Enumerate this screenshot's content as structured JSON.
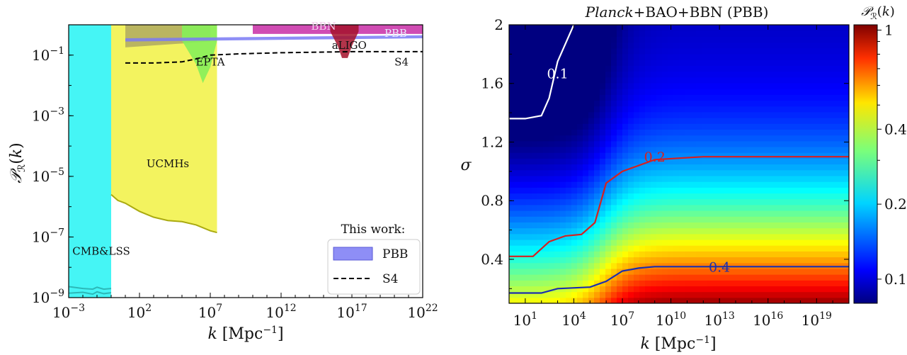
{
  "chart_data": [
    {
      "type": "area",
      "xlabel": "k [Mpc⁻¹]",
      "ylabel": "𝒫_ℛ(k)",
      "xscale": "log",
      "yscale": "log",
      "xlim": [
        0.001,
        1e+22
      ],
      "ylim": [
        1e-09,
        1
      ],
      "grid": false,
      "x_ticks": [
        {
          "base": "10",
          "exp": "−3",
          "value": 0.001
        },
        {
          "base": "10",
          "exp": "2",
          "value": 100
        },
        {
          "base": "10",
          "exp": "7",
          "value": 10000000.0
        },
        {
          "base": "10",
          "exp": "12",
          "value": 1000000000000.0
        },
        {
          "base": "10",
          "exp": "17",
          "value": 1e+17
        },
        {
          "base": "10",
          "exp": "22",
          "value": 1e+22
        }
      ],
      "y_ticks": [
        {
          "base": "10",
          "exp": "−9",
          "value": 1e-09
        },
        {
          "base": "10",
          "exp": "−7",
          "value": 1e-07
        },
        {
          "base": "10",
          "exp": "−5",
          "value": 1e-05
        },
        {
          "base": "10",
          "exp": "−3",
          "value": 0.001
        },
        {
          "base": "10",
          "exp": "−1",
          "value": 0.1
        }
      ],
      "regions": [
        {
          "name": "CMB&LSS",
          "color": "#45f5f5",
          "edge": "#2cb8b8",
          "x": [
            0.001,
            1,
            1
          ],
          "y_low": [
            1e-09,
            1e-09,
            1e-09
          ],
          "y_high": [
            1,
            1,
            1
          ]
        },
        {
          "name": "UCMHs",
          "color": "#f3f35f",
          "edge": "#aaaa10",
          "x": [
            1,
            3,
            10,
            100,
            1000,
            10000.0,
            100000.0,
            1000000.0,
            10000000.0,
            30000000.0
          ],
          "y_low": [
            2.5e-06,
            1.6e-06,
            1.3e-06,
            7e-07,
            4.5e-07,
            3.5e-07,
            3.2e-07,
            2.5e-07,
            1.6e-07,
            1.4e-07
          ],
          "y_high": [
            1,
            1,
            1,
            1,
            1,
            1,
            1,
            1,
            1,
            1
          ]
        },
        {
          "name": "EPTA",
          "color": "#86f05a",
          "x": [
            100000.0,
            1000000.0,
            3000000.0,
            10000000.0,
            30000000.0
          ],
          "y_low": [
            0.3,
            0.05,
            0.012,
            0.04,
            0.3
          ],
          "y_high": [
            1,
            1,
            1,
            1,
            1
          ]
        },
        {
          "name": "BBN",
          "color": "#c0109a",
          "x": [
            10000000000.0,
            1e+22
          ],
          "y_low": [
            0.5,
            0.5
          ],
          "y_high": [
            1,
            1
          ]
        },
        {
          "name": "aLIGO",
          "color": "#a5102a",
          "x": [
            3000000000000000.0,
            1e+16,
            2e+16,
            5e+16,
            1e+17,
            3e+17
          ],
          "y_low": [
            0.6,
            0.2,
            0.08,
            0.08,
            0.2,
            0.6
          ],
          "y_high": [
            1,
            1,
            1,
            1,
            1,
            1
          ]
        }
      ],
      "series": [
        {
          "name": "PBB",
          "kind": "band",
          "color": "#7a7af5",
          "x": [
            10,
            1e+22
          ],
          "y_low": [
            0.28,
            0.36
          ],
          "y_high": [
            0.36,
            0.45
          ]
        },
        {
          "name": "S4",
          "kind": "dashed-line",
          "color": "#000000",
          "x": [
            10,
            1000,
            100000.0,
            1000000.0,
            10000000.0,
            1000000000.0,
            1000000000000.0,
            1e+17,
            1e+22
          ],
          "y": [
            0.055,
            0.055,
            0.06,
            0.075,
            0.1,
            0.11,
            0.12,
            0.13,
            0.13
          ]
        },
        {
          "name": "This work lower edge",
          "kind": "band",
          "color": "#a7a060",
          "x": [
            10,
            10000000.0
          ],
          "y_low": [
            0.18,
            0.28
          ],
          "y_high": [
            1,
            1
          ]
        }
      ],
      "annotations": [
        "BBN",
        "PBB",
        "aLIGO",
        "EPTA",
        "S4",
        "UCMHs",
        "CMB&LSS"
      ],
      "legend": {
        "title": "This work:",
        "placement": "lower-right",
        "entries": [
          "PBB",
          "S4"
        ]
      }
    },
    {
      "type": "heatmap",
      "title_italic": "Planck",
      "title_rest": "+BAO+BBN (PBB)",
      "xlabel": "k [Mpc⁻¹]",
      "ylabel": "σ",
      "xscale": "log",
      "xlim": [
        1,
        1e+21
      ],
      "ylim": [
        0.1,
        2.0
      ],
      "x_ticks": [
        {
          "base": "10",
          "exp": "1",
          "value": 10
        },
        {
          "base": "10",
          "exp": "4",
          "value": 10000.0
        },
        {
          "base": "10",
          "exp": "7",
          "value": 10000000.0
        },
        {
          "base": "10",
          "exp": "10",
          "value": 10000000000.0
        },
        {
          "base": "10",
          "exp": "13",
          "value": 10000000000000.0
        },
        {
          "base": "10",
          "exp": "16",
          "value": 1e+16
        },
        {
          "base": "10",
          "exp": "19",
          "value": 1e+19
        }
      ],
      "y_ticks": [
        "0.4",
        "0.8",
        "1.2",
        "1.6",
        "2"
      ],
      "colorbar": {
        "label": "𝒫_ℛ(k)",
        "range": [
          0.08,
          1.05
        ],
        "ticks": [
          "0.1",
          "0.2",
          "0.4",
          "1"
        ],
        "tick_values": [
          0.1,
          0.2,
          0.4,
          1.0
        ],
        "colormap": "jet"
      },
      "contours": [
        {
          "level": "0.1",
          "color": "#ffffff",
          "points": [
            [
              1,
              1.36
            ],
            [
              10,
              1.36
            ],
            [
              100,
              1.38
            ],
            [
              300,
              1.5
            ],
            [
              1000,
              1.75
            ],
            [
              10000,
              2.0
            ]
          ]
        },
        {
          "level": "0.2",
          "color": "#d62020",
          "points": [
            [
              1,
              0.42
            ],
            [
              30,
              0.42
            ],
            [
              300,
              0.52
            ],
            [
              3000,
              0.56
            ],
            [
              30000,
              0.57
            ],
            [
              200000,
              0.65
            ],
            [
              1000000,
              0.92
            ],
            [
              10000000,
              1.0
            ],
            [
              100000000,
              1.04
            ],
            [
              1000000000,
              1.08
            ],
            [
              1000000000000.0,
              1.1
            ],
            [
              1e+21,
              1.1
            ]
          ]
        },
        {
          "level": "0.4",
          "color": "#1a2fb0",
          "points": [
            [
              1,
              0.17
            ],
            [
              100,
              0.17
            ],
            [
              1000,
              0.2
            ],
            [
              100000,
              0.21
            ],
            [
              1000000,
              0.25
            ],
            [
              10000000,
              0.32
            ],
            [
              100000000,
              0.34
            ],
            [
              1000000000,
              0.35
            ],
            [
              1e+21,
              0.35
            ]
          ]
        }
      ]
    }
  ]
}
